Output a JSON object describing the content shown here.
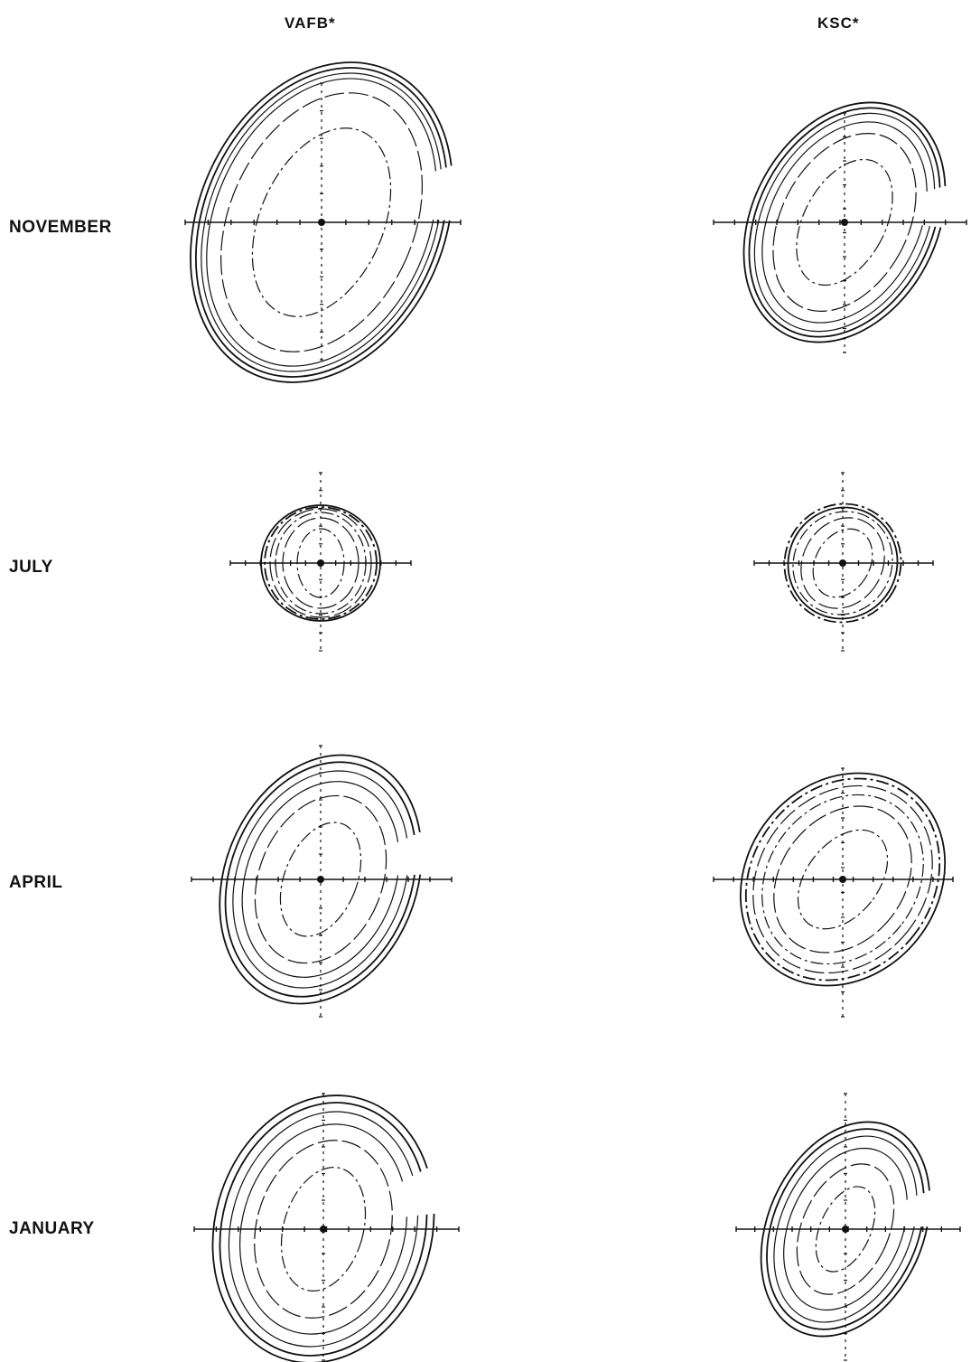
{
  "headers": {
    "left": "VAFB*",
    "right": "KSC*"
  },
  "rows": [
    {
      "label": "NOVEMBER"
    },
    {
      "label": "JULY"
    },
    {
      "label": "APRIL"
    },
    {
      "label": "JANUARY"
    }
  ],
  "colors": {
    "ink": "#111111",
    "background": "#ffffff"
  }
}
